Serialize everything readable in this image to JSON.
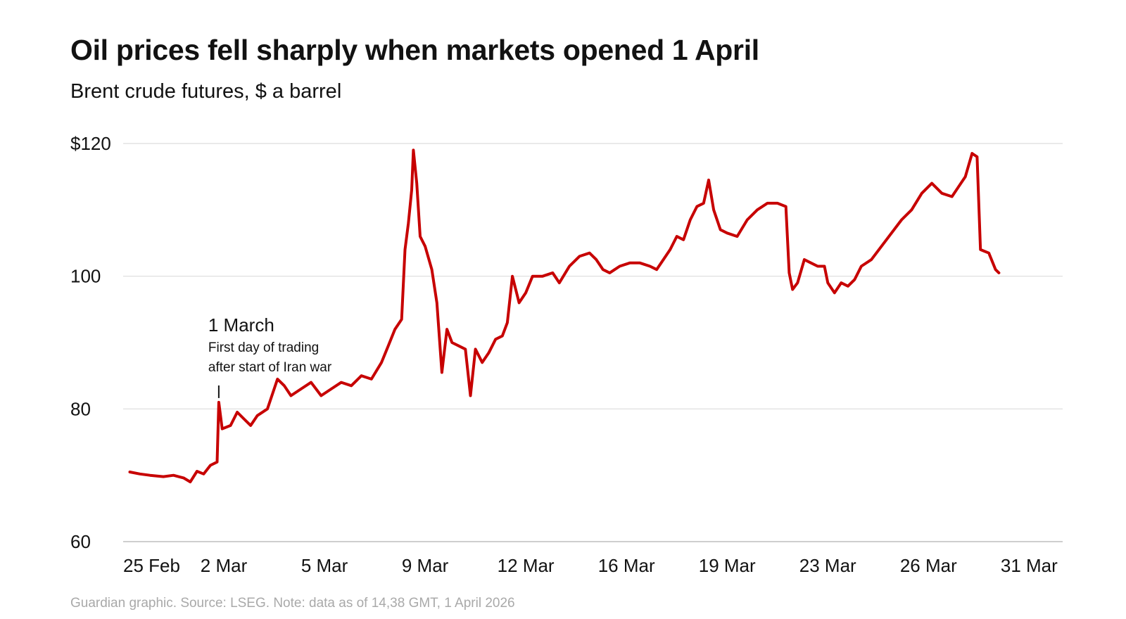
{
  "header": {
    "title": "Oil prices fell sharply when markets opened 1 April",
    "subtitle": "Brent crude futures, $ a barrel"
  },
  "footer": {
    "source": "Guardian graphic. Source: LSEG. Note: data as of 14,38 GMT, 1 April 2026"
  },
  "annotation": {
    "heading": "1 March",
    "line1": "First day of trading",
    "line2": "after start of Iran war",
    "x": 2.85,
    "y": 81
  },
  "colors": {
    "line": "#c70000",
    "grid": "#dcdcdc",
    "axis": "#bdbdbd"
  },
  "chart_data": {
    "type": "line",
    "title": "Oil prices fell sharply when markets opened 1 April",
    "subtitle": "Brent crude futures, $ a barrel",
    "xlabel": "",
    "ylabel": "",
    "x_unit": "trading days from 25 Feb",
    "xlim": [
      0,
      28
    ],
    "ylim": [
      60,
      120
    ],
    "y_ticks": [
      {
        "value": 120,
        "label": "$120"
      },
      {
        "value": 100,
        "label": "100"
      },
      {
        "value": 80,
        "label": "80"
      },
      {
        "value": 60,
        "label": "60"
      }
    ],
    "x_ticks": [
      {
        "value": 0,
        "label": "25 Feb"
      },
      {
        "value": 3,
        "label": "2 Mar"
      },
      {
        "value": 6,
        "label": "5 Mar"
      },
      {
        "value": 9,
        "label": "9 Mar"
      },
      {
        "value": 12,
        "label": "12 Mar"
      },
      {
        "value": 15,
        "label": "16 Mar"
      },
      {
        "value": 18,
        "label": "19 Mar"
      },
      {
        "value": 21,
        "label": "23 Mar"
      },
      {
        "value": 24,
        "label": "26 Mar"
      },
      {
        "value": 27,
        "label": "31 Mar"
      }
    ],
    "grid": true,
    "legend": "none",
    "series": [
      {
        "color": "#c70000",
        "points": [
          [
            0.2,
            70.5
          ],
          [
            0.5,
            70.2
          ],
          [
            0.8,
            70.0
          ],
          [
            1.2,
            69.8
          ],
          [
            1.5,
            70.0
          ],
          [
            1.8,
            69.6
          ],
          [
            2.0,
            69.0
          ],
          [
            2.2,
            70.6
          ],
          [
            2.4,
            70.2
          ],
          [
            2.6,
            71.5
          ],
          [
            2.8,
            72.0
          ],
          [
            2.85,
            81.0
          ],
          [
            2.95,
            77.0
          ],
          [
            3.2,
            77.5
          ],
          [
            3.4,
            79.5
          ],
          [
            3.6,
            78.5
          ],
          [
            3.8,
            77.5
          ],
          [
            4.0,
            79.0
          ],
          [
            4.3,
            80.0
          ],
          [
            4.6,
            84.5
          ],
          [
            4.8,
            83.5
          ],
          [
            5.0,
            82.0
          ],
          [
            5.3,
            83.0
          ],
          [
            5.6,
            84.0
          ],
          [
            5.9,
            82.0
          ],
          [
            6.2,
            83.0
          ],
          [
            6.5,
            84.0
          ],
          [
            6.8,
            83.5
          ],
          [
            7.1,
            85.0
          ],
          [
            7.4,
            84.5
          ],
          [
            7.7,
            87.0
          ],
          [
            7.9,
            89.5
          ],
          [
            8.1,
            92.0
          ],
          [
            8.3,
            93.5
          ],
          [
            8.4,
            104.0
          ],
          [
            8.5,
            108.0
          ],
          [
            8.6,
            113.0
          ],
          [
            8.65,
            119.0
          ],
          [
            8.75,
            114.0
          ],
          [
            8.85,
            106.0
          ],
          [
            9.0,
            104.5
          ],
          [
            9.2,
            101.0
          ],
          [
            9.35,
            96.0
          ],
          [
            9.5,
            85.5
          ],
          [
            9.65,
            92.0
          ],
          [
            9.8,
            90.0
          ],
          [
            10.0,
            89.5
          ],
          [
            10.2,
            89.0
          ],
          [
            10.35,
            82.0
          ],
          [
            10.5,
            89.0
          ],
          [
            10.7,
            87.0
          ],
          [
            10.9,
            88.5
          ],
          [
            11.1,
            90.5
          ],
          [
            11.3,
            91.0
          ],
          [
            11.45,
            93.0
          ],
          [
            11.6,
            100.0
          ],
          [
            11.8,
            96.0
          ],
          [
            12.0,
            97.5
          ],
          [
            12.2,
            100.0
          ],
          [
            12.5,
            100.0
          ],
          [
            12.8,
            100.5
          ],
          [
            13.0,
            99.0
          ],
          [
            13.3,
            101.5
          ],
          [
            13.6,
            103.0
          ],
          [
            13.9,
            103.5
          ],
          [
            14.1,
            102.5
          ],
          [
            14.3,
            101.0
          ],
          [
            14.5,
            100.5
          ],
          [
            14.8,
            101.5
          ],
          [
            15.1,
            102.0
          ],
          [
            15.4,
            102.0
          ],
          [
            15.7,
            101.5
          ],
          [
            15.9,
            101.0
          ],
          [
            16.1,
            102.5
          ],
          [
            16.3,
            104.0
          ],
          [
            16.5,
            106.0
          ],
          [
            16.7,
            105.5
          ],
          [
            16.9,
            108.5
          ],
          [
            17.1,
            110.5
          ],
          [
            17.3,
            111.0
          ],
          [
            17.45,
            114.5
          ],
          [
            17.6,
            110.0
          ],
          [
            17.8,
            107.0
          ],
          [
            18.0,
            106.5
          ],
          [
            18.3,
            106.0
          ],
          [
            18.6,
            108.5
          ],
          [
            18.9,
            110.0
          ],
          [
            19.2,
            111.0
          ],
          [
            19.5,
            111.0
          ],
          [
            19.75,
            110.5
          ],
          [
            19.85,
            100.5
          ],
          [
            19.95,
            98.0
          ],
          [
            20.1,
            99.0
          ],
          [
            20.3,
            102.5
          ],
          [
            20.5,
            102.0
          ],
          [
            20.7,
            101.5
          ],
          [
            20.9,
            101.5
          ],
          [
            21.0,
            99.0
          ],
          [
            21.2,
            97.5
          ],
          [
            21.4,
            99.0
          ],
          [
            21.6,
            98.5
          ],
          [
            21.8,
            99.5
          ],
          [
            22.0,
            101.5
          ],
          [
            22.3,
            102.5
          ],
          [
            22.6,
            104.5
          ],
          [
            22.9,
            106.5
          ],
          [
            23.2,
            108.5
          ],
          [
            23.5,
            110.0
          ],
          [
            23.8,
            112.5
          ],
          [
            24.1,
            114.0
          ],
          [
            24.4,
            112.5
          ],
          [
            24.7,
            112.0
          ],
          [
            24.9,
            113.5
          ],
          [
            25.1,
            115.0
          ],
          [
            25.3,
            118.5
          ],
          [
            25.45,
            118.0
          ],
          [
            25.55,
            104.0
          ],
          [
            25.8,
            103.5
          ],
          [
            26.0,
            101.0
          ],
          [
            26.1,
            100.5
          ]
        ]
      }
    ]
  }
}
